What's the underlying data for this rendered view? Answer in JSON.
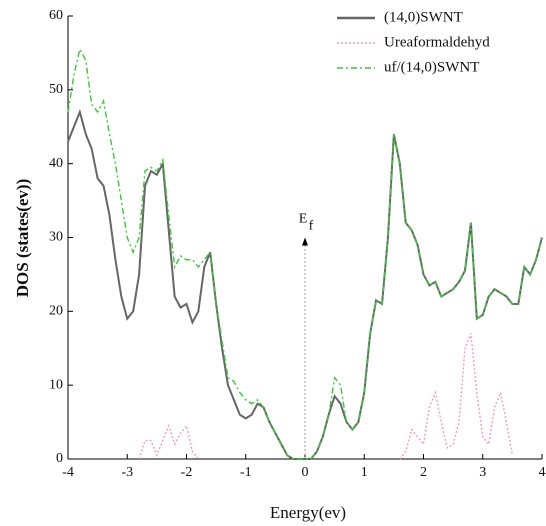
{
  "chart_data": {
    "type": "line",
    "x_label": "Energy(ev)",
    "y_label": "DOS (states(ev))",
    "x": [
      -4,
      -3.9,
      -3.8,
      -3.7,
      -3.6,
      -3.5,
      -3.4,
      -3.3,
      -3.2,
      -3.1,
      -3,
      -2.9,
      -2.8,
      -2.7,
      -2.6,
      -2.5,
      -2.4,
      -2.3,
      -2.2,
      -2.1,
      -2,
      -1.9,
      -1.8,
      -1.7,
      -1.6,
      -1.5,
      -1.4,
      -1.3,
      -1.2,
      -1.1,
      -1,
      -0.9,
      -0.8,
      -0.7,
      -0.6,
      -0.5,
      -0.4,
      -0.3,
      -0.2,
      -0.1,
      0,
      0.1,
      0.2,
      0.3,
      0.4,
      0.5,
      0.6,
      0.7,
      0.8,
      0.9,
      1,
      1.1,
      1.2,
      1.3,
      1.4,
      1.5,
      1.6,
      1.7,
      1.8,
      1.9,
      2,
      2.1,
      2.2,
      2.3,
      2.4,
      2.5,
      2.6,
      2.7,
      2.8,
      2.9,
      3,
      3.1,
      3.2,
      3.3,
      3.4,
      3.5,
      3.6,
      3.7,
      3.8,
      3.9,
      4
    ],
    "series": [
      {
        "name": "(14,0)SWNT",
        "color": "#666666",
        "style": "solid",
        "values": [
          43,
          45,
          47,
          44,
          42,
          38,
          37,
          33,
          27,
          22,
          19,
          20,
          25,
          37,
          39,
          38.5,
          40,
          31,
          22,
          20.5,
          21,
          18.5,
          20,
          26,
          28,
          21,
          15,
          10,
          8,
          6,
          5.5,
          6,
          7.5,
          7,
          5,
          3.5,
          2,
          0.5,
          0,
          0,
          0,
          0,
          1,
          3,
          6,
          8.5,
          7.5,
          5,
          4,
          5,
          9,
          17,
          21.5,
          21,
          30,
          44,
          40,
          32,
          31,
          29,
          25,
          23.5,
          24,
          22,
          22.5,
          23,
          24,
          25.5,
          32,
          19,
          19.5,
          22,
          23,
          22.5,
          22,
          21,
          21,
          26,
          25,
          27,
          30
        ]
      },
      {
        "name": "Ureaformaldehyd",
        "color": "#f29bc4",
        "style": "dotted",
        "values": [
          null,
          null,
          null,
          null,
          null,
          null,
          null,
          null,
          null,
          null,
          null,
          null,
          0,
          2.5,
          2.5,
          0.5,
          2.5,
          4.5,
          2,
          3.5,
          4.5,
          1,
          0,
          null,
          null,
          null,
          null,
          null,
          null,
          null,
          null,
          null,
          null,
          null,
          null,
          null,
          null,
          null,
          null,
          null,
          null,
          null,
          null,
          null,
          null,
          null,
          null,
          null,
          null,
          null,
          null,
          null,
          null,
          null,
          null,
          null,
          0,
          1,
          4,
          3,
          2,
          7,
          9,
          5,
          1.5,
          2,
          5,
          15,
          17,
          9,
          3,
          2,
          7,
          9,
          5,
          0.5,
          null,
          null,
          null,
          null,
          null
        ]
      },
      {
        "name": "uf/(14,0)SWNT",
        "color": "#33cc33",
        "style": "dashdot",
        "values": [
          47,
          52,
          55.5,
          54,
          48,
          47,
          48.5,
          44,
          40,
          35,
          30,
          28,
          30,
          39,
          39.5,
          39,
          40.5,
          33,
          26,
          27.5,
          27,
          27,
          26,
          27,
          28,
          21,
          16,
          11,
          10.5,
          9,
          8,
          7.5,
          8,
          7,
          5,
          3.5,
          2,
          0.5,
          0,
          0,
          0,
          0,
          1,
          3,
          6,
          11,
          10,
          5,
          4,
          5,
          9,
          17,
          21.5,
          21,
          30,
          44,
          40,
          32,
          31,
          29,
          25,
          23.5,
          24,
          22,
          22.5,
          23,
          24,
          25.5,
          32,
          19,
          19.5,
          22,
          23,
          22.5,
          22,
          21,
          21,
          26,
          25,
          27,
          30
        ]
      }
    ],
    "xlim": [
      -4,
      4
    ],
    "xticks": [
      -4,
      -3,
      -2,
      -1,
      0,
      1,
      2,
      3,
      4
    ],
    "ylim": [
      0,
      60
    ],
    "yticks": [
      0,
      10,
      20,
      30,
      40,
      50,
      60
    ],
    "legend": "upper right",
    "annotation": {
      "text": "E",
      "subscript": "f",
      "x": 0,
      "y": 30
    }
  }
}
